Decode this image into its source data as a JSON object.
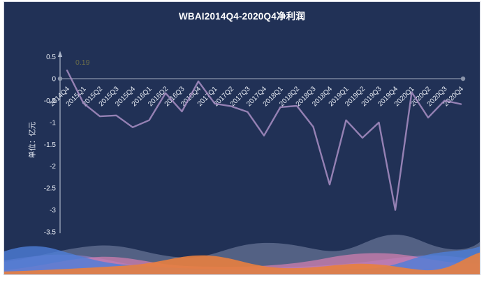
{
  "chart_data": {
    "type": "line",
    "title": "WBAI2014Q4-2020Q4净利润",
    "ylabel": "单位：亿元",
    "xlabel": "",
    "categories": [
      "2014Q4",
      "2015Q1",
      "2015Q2",
      "2015Q3",
      "2015Q4",
      "2016Q1",
      "2016Q2",
      "2016Q3",
      "2016Q4",
      "2017Q1",
      "2017Q2",
      "2017Q3",
      "2017Q4",
      "2018Q1",
      "2018Q2",
      "2018Q3",
      "2018Q4",
      "2019Q1",
      "2019Q2",
      "2019Q3",
      "2019Q4",
      "2020Q1",
      "2020Q2",
      "2020Q3",
      "2020Q4"
    ],
    "values": [
      0.19,
      -0.56,
      -0.86,
      -0.84,
      -1.11,
      -0.95,
      -0.33,
      -0.75,
      -0.06,
      -0.57,
      -0.63,
      -0.76,
      -1.3,
      -0.65,
      -0.62,
      -1.1,
      -2.42,
      -0.95,
      -1.35,
      -1.0,
      -3.0,
      -0.31,
      -0.89,
      -0.5,
      -0.58
    ],
    "ylim": [
      -3.5,
      0.5
    ],
    "ytick_labels": [
      "0.5",
      "0",
      "-0.5",
      "-1",
      "-1.5",
      "-2",
      "-2.5",
      "-3",
      "-3.5"
    ],
    "first_point_label": "0.19",
    "grid": false,
    "legend_position": "none",
    "zero_line": true
  },
  "colors": {
    "background": "#213156",
    "title_text": "#ffffff",
    "tick_text": "#e9edf5",
    "axis_line": "#aab4c8",
    "zero_line": "#8a94aa",
    "series_line": "#a98fc4",
    "value_label": "#6b6d49"
  },
  "decor": {
    "wave_slate": "#5c6a8c",
    "wave_purple": "#8f7fd0",
    "wave_pink": "#d77fb0",
    "wave_blue": "#4d7ed8",
    "wave_orange": "#e87f3f"
  }
}
